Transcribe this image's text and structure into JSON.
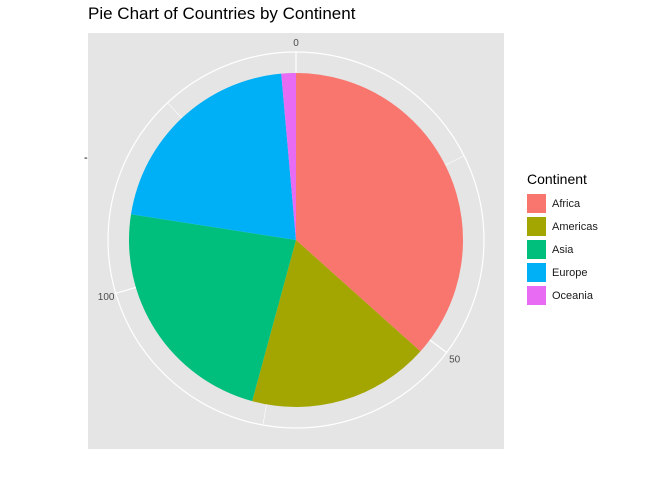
{
  "chart_data": {
    "type": "pie",
    "title": "Pie Chart of Countries by Continent",
    "y_tick_label": "-",
    "categories": [
      "Africa",
      "Americas",
      "Asia",
      "Europe",
      "Oceania"
    ],
    "values": [
      52,
      25,
      33,
      30,
      2
    ],
    "colors": [
      "#F8766D",
      "#A3A500",
      "#00BF7D",
      "#00B0F6",
      "#E76BF3"
    ],
    "radial_ticks": [
      "0",
      "50",
      "100"
    ],
    "radial_tick_values": [
      0,
      50,
      100
    ],
    "legend": {
      "title": "Continent",
      "placement": "right"
    },
    "grid": true
  }
}
